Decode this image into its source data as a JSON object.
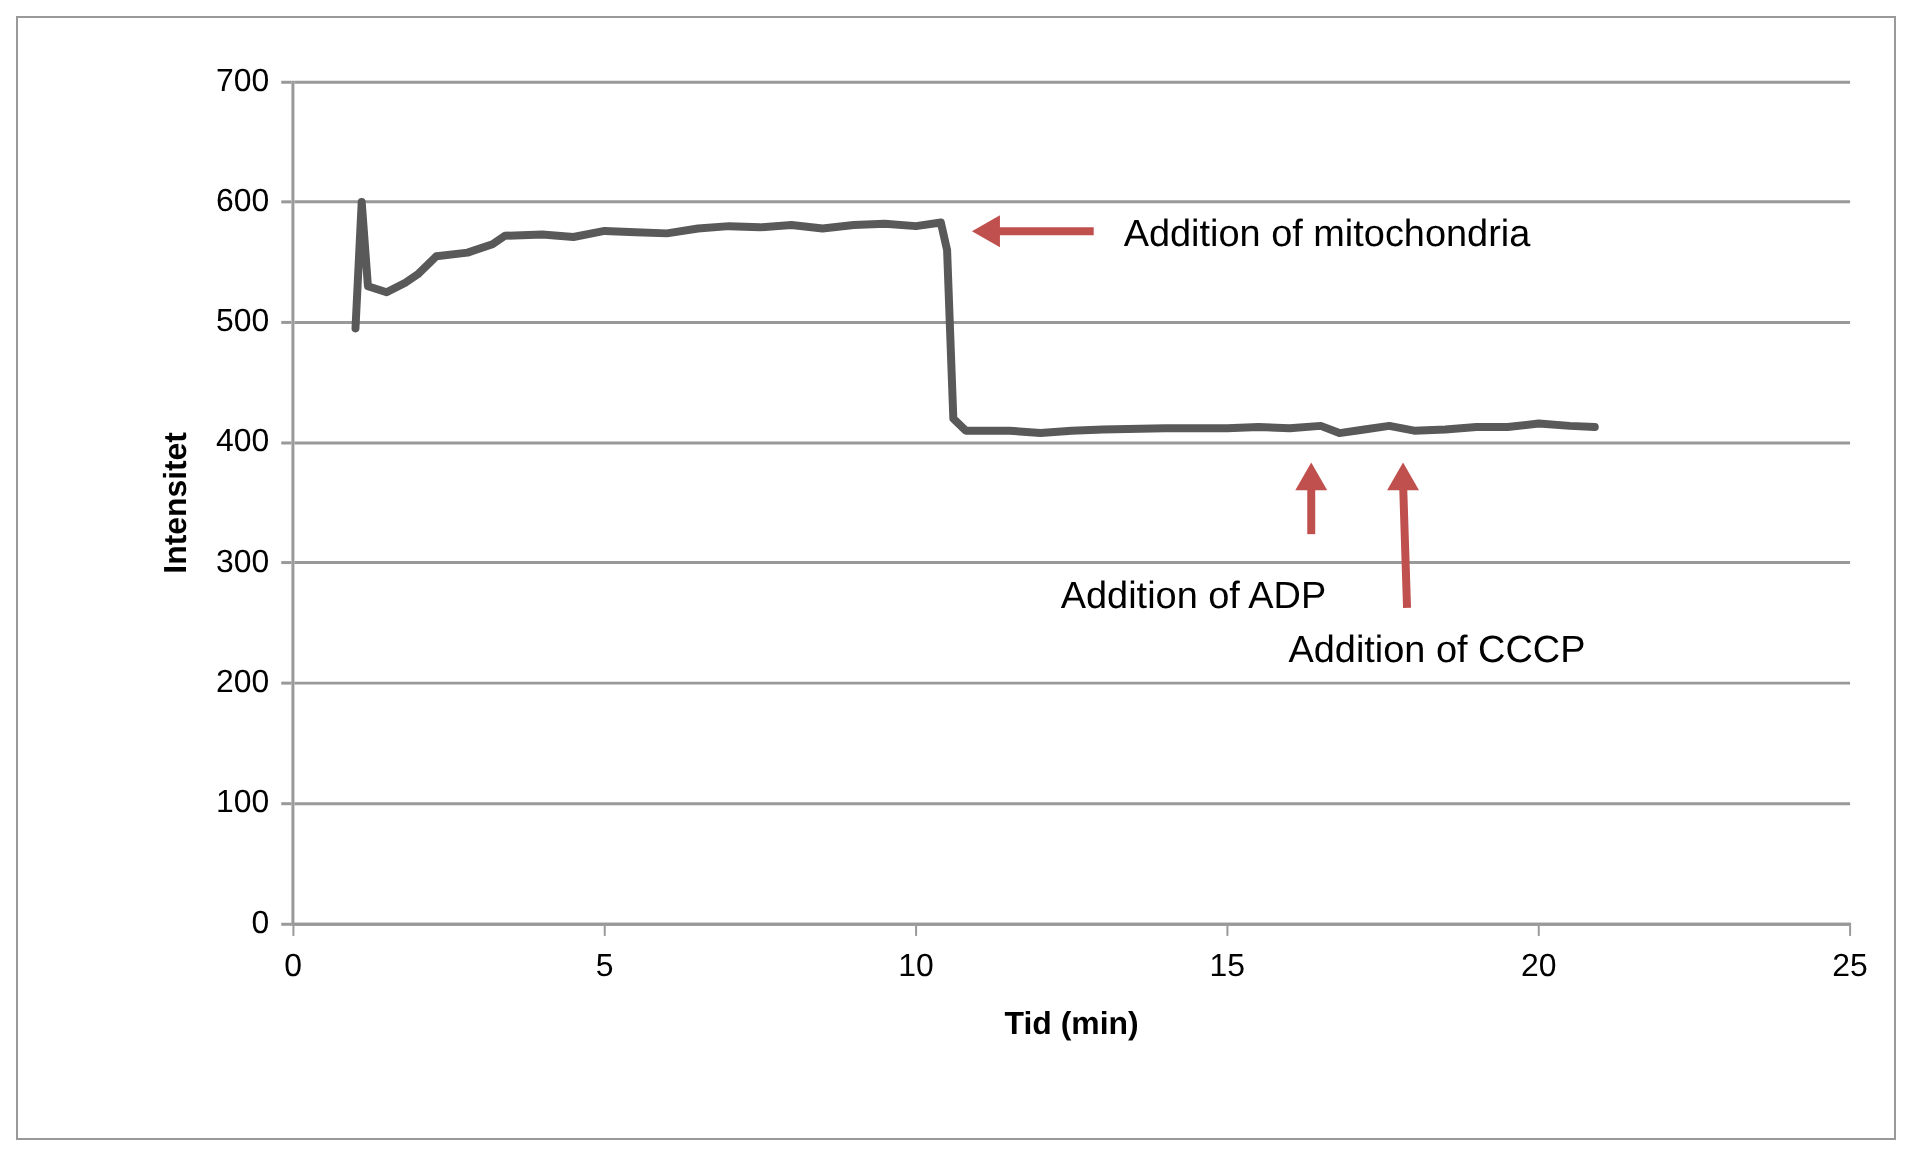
{
  "chart_data": {
    "type": "line",
    "xlabel": "Tid (min)",
    "ylabel": "Intensitet",
    "series": [
      {
        "color": "#595959",
        "x": [
          1.0,
          1.1,
          1.2,
          1.5,
          1.8,
          2.0,
          2.3,
          2.8,
          3.2,
          3.4,
          4,
          4.5,
          5,
          5.5,
          6,
          6.5,
          7,
          7.5,
          8,
          8.5,
          9,
          9.5,
          10,
          10.4,
          10.5,
          10.6,
          10.8,
          11.5,
          12,
          12.5,
          13,
          14,
          15,
          15.5,
          16,
          16.5,
          16.8,
          17.2,
          17.6,
          18,
          18.5,
          19,
          19.5,
          20,
          20.5,
          20.9
        ],
        "values": [
          495,
          600,
          530,
          525,
          533,
          540,
          555,
          558,
          565,
          572,
          573,
          571,
          576,
          575,
          574,
          578,
          580,
          579,
          581,
          578,
          581,
          582,
          580,
          583,
          560,
          420,
          410,
          410,
          408,
          410,
          411,
          412,
          412,
          413,
          412,
          414,
          408,
          411,
          414,
          410,
          411,
          413,
          413,
          416,
          414,
          413
        ]
      }
    ],
    "xlim": [
      0,
      25
    ],
    "xticks": [
      0,
      5,
      10,
      15,
      20,
      25
    ],
    "ylim": [
      0,
      700
    ],
    "yticks": [
      0,
      100,
      200,
      300,
      400,
      500,
      600,
      700
    ],
    "grid": "y",
    "legend": false,
    "marker": "none",
    "line_style": "solid",
    "annotations": [
      "Addition of mitochondria",
      "Addition of ADP",
      "Addition of CCCP"
    ]
  }
}
